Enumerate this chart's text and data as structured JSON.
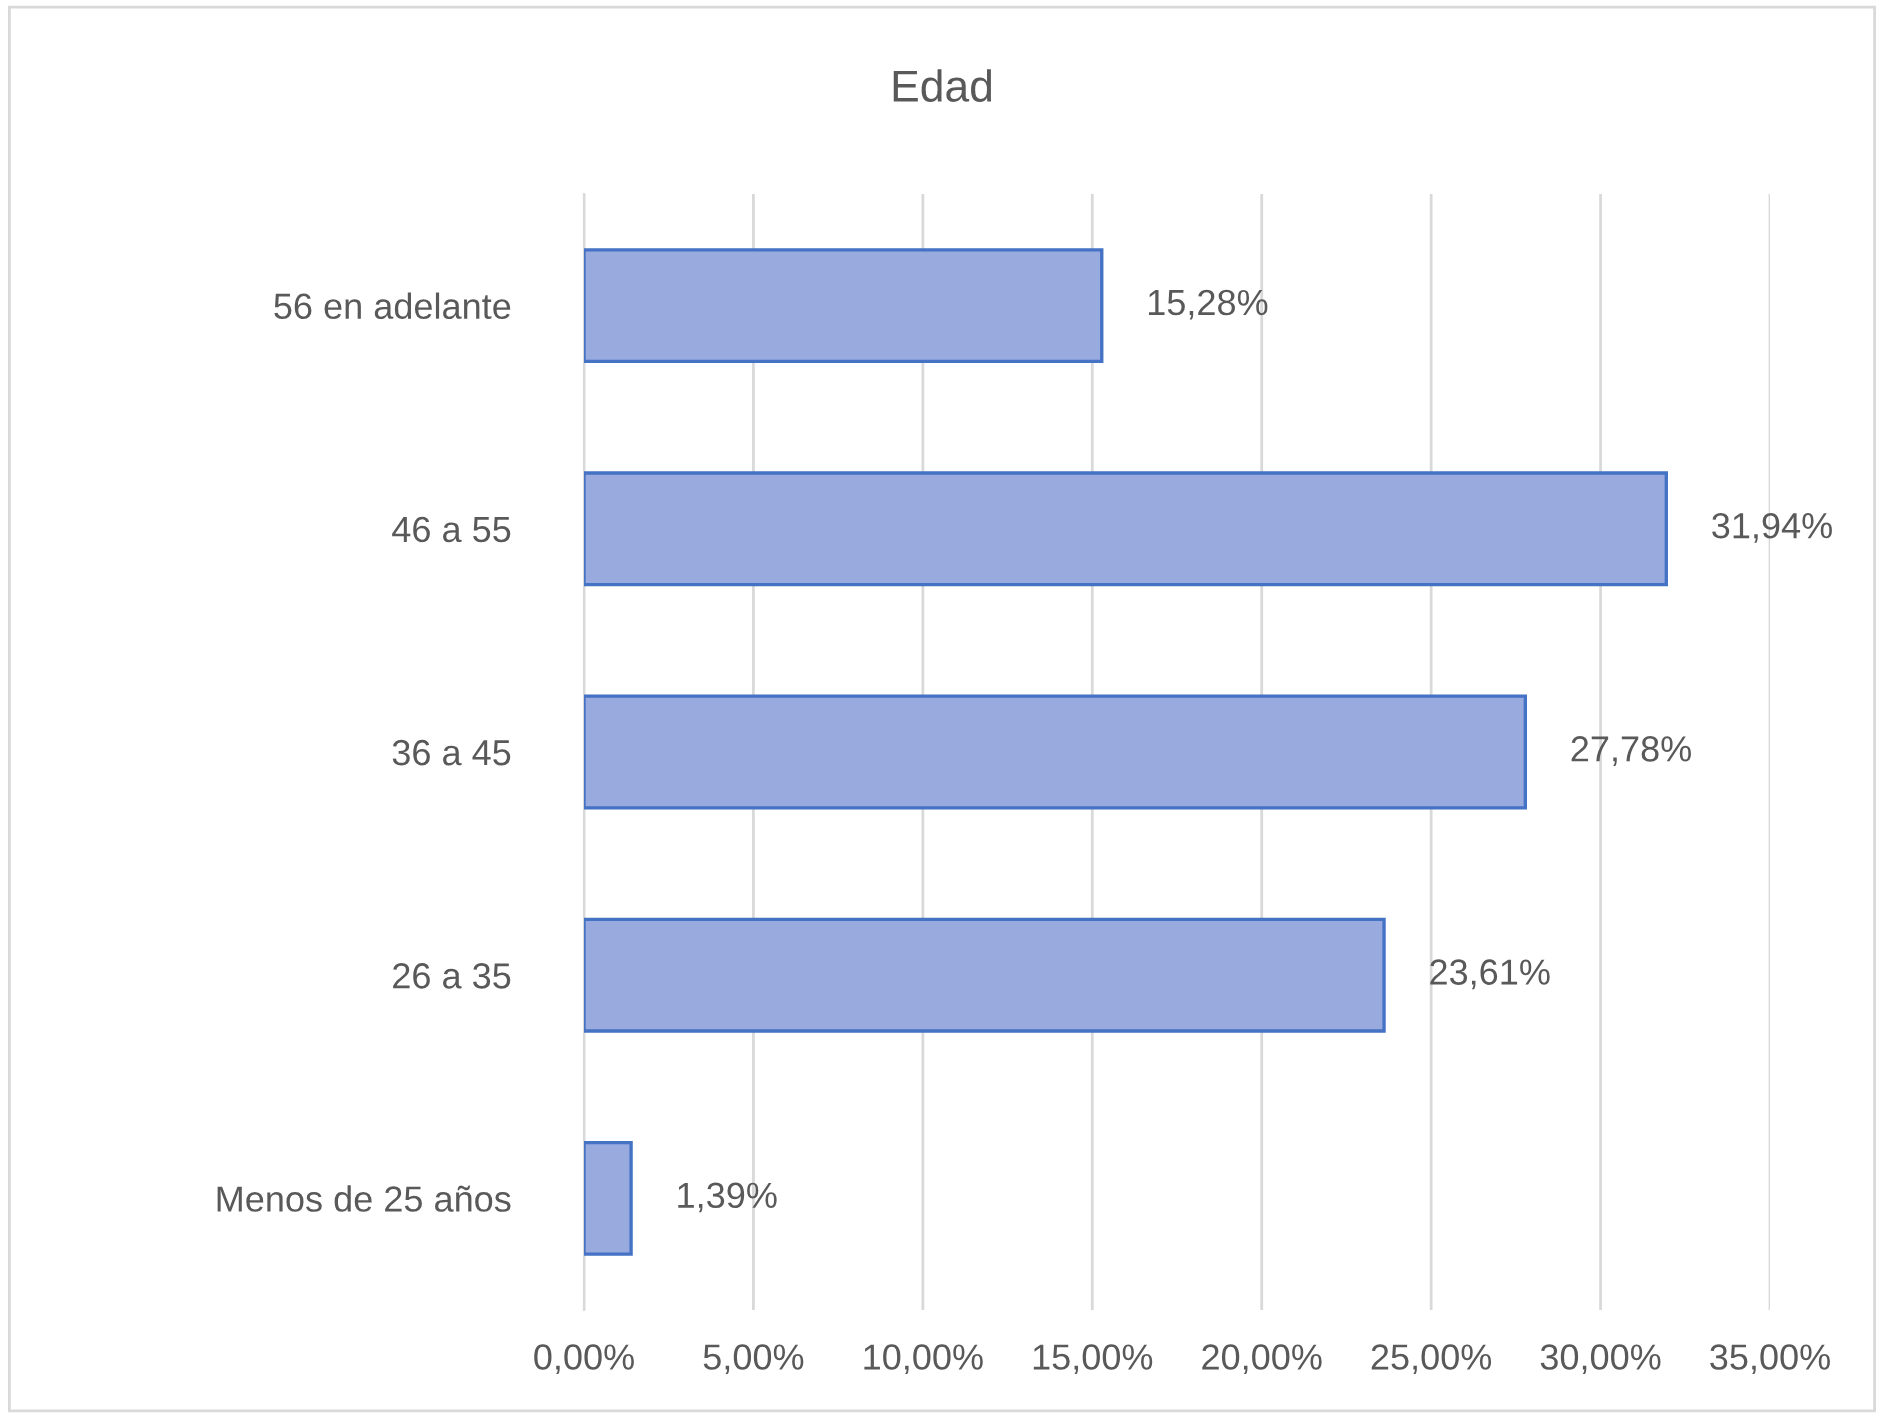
{
  "chart_data": {
    "type": "bar",
    "orientation": "horizontal",
    "title": "Edad",
    "categories": [
      "56 en adelante",
      "46 a 55",
      "36 a 45",
      "26 a 35",
      "Menos de 25 años"
    ],
    "values": [
      15.28,
      31.94,
      27.78,
      23.61,
      1.39
    ],
    "value_labels": [
      "15,28%",
      "31,94%",
      "27,78%",
      "23,61%",
      "1,39%"
    ],
    "color": "#98aade",
    "xlim": [
      0,
      35
    ],
    "xticks": [
      {
        "value": 0,
        "label": "0,00%"
      },
      {
        "value": 5,
        "label": "5,00%"
      },
      {
        "value": 10,
        "label": "10,00%"
      },
      {
        "value": 15,
        "label": "15,00%"
      },
      {
        "value": 20,
        "label": "20,00%"
      },
      {
        "value": 25,
        "label": "25,00%"
      },
      {
        "value": 30,
        "label": "30,00%"
      },
      {
        "value": 35,
        "label": "35,00%"
      }
    ],
    "grid": "x",
    "legend": false
  }
}
